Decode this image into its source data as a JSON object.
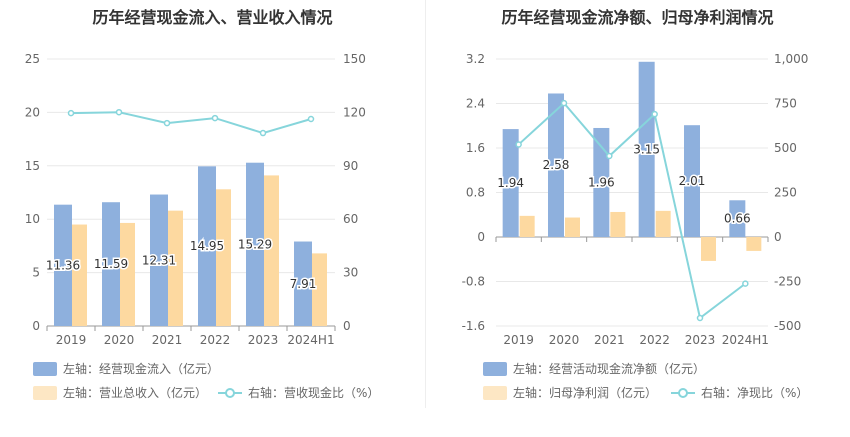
{
  "chart_data": [
    {
      "type": "bar",
      "title": "历年经营现金流入、营业收入情况",
      "categories": [
        "2019",
        "2020",
        "2021",
        "2022",
        "2023",
        "2024H1"
      ],
      "left_axis": {
        "ylim": [
          0,
          25
        ],
        "ticks": [
          "0",
          "5",
          "10",
          "15",
          "20",
          "25"
        ]
      },
      "right_axis": {
        "ylim": [
          0,
          150
        ],
        "ticks": [
          "0",
          "30",
          "60",
          "90",
          "120",
          "150"
        ]
      },
      "series": [
        {
          "name": "左轴：经营现金流入（亿元）",
          "axis": "left",
          "kind": "bar",
          "color": "#8eb0dd",
          "values": [
            11.36,
            11.59,
            12.31,
            14.95,
            15.29,
            7.91
          ],
          "labels": [
            "11.36",
            "11.59",
            "12.31",
            "14.95",
            "15.29",
            "7.91"
          ]
        },
        {
          "name": "左轴：营业总收入（亿元）",
          "axis": "left",
          "kind": "bar",
          "color": "#fdd9a0",
          "values": [
            9.5,
            9.65,
            10.8,
            12.8,
            14.1,
            6.8
          ]
        },
        {
          "name": "右轴：营收现金比（%）",
          "axis": "right",
          "kind": "line",
          "color": "#86d5db",
          "values": [
            119.6,
            120.1,
            114.0,
            116.8,
            108.4,
            116.3
          ]
        }
      ],
      "grid": true,
      "legend_position": "bottom-left"
    },
    {
      "type": "bar",
      "title": "历年经营现金流净额、归母净利润情况",
      "categories": [
        "2019",
        "2020",
        "2021",
        "2022",
        "2023",
        "2024H1"
      ],
      "left_axis": {
        "ylim": [
          -1.6,
          3.2
        ],
        "ticks": [
          "-1.6",
          "-0.8",
          "0",
          "0.8",
          "1.6",
          "2.4",
          "3.2"
        ]
      },
      "right_axis": {
        "ylim": [
          -500,
          1000
        ],
        "ticks": [
          "-500",
          "-250",
          "0",
          "250",
          "500",
          "750",
          "1,000"
        ]
      },
      "series": [
        {
          "name": "左轴：经营活动现金流净额（亿元）",
          "axis": "left",
          "kind": "bar",
          "color": "#8eb0dd",
          "values": [
            1.94,
            2.58,
            1.96,
            3.15,
            2.01,
            0.66
          ],
          "labels": [
            "1.94",
            "2.58",
            "1.96",
            "3.15",
            "2.01",
            "0.66"
          ]
        },
        {
          "name": "左轴：归母净利润（亿元）",
          "axis": "left",
          "kind": "bar",
          "color": "#fdd9a0",
          "values": [
            0.38,
            0.35,
            0.45,
            0.47,
            -0.43,
            -0.25
          ]
        },
        {
          "name": "右轴：净现比（%）",
          "axis": "right",
          "kind": "line",
          "color": "#86d5db",
          "values": [
            520,
            752,
            455,
            690,
            -455,
            -262
          ]
        }
      ],
      "grid": true,
      "legend_position": "bottom-left"
    }
  ]
}
